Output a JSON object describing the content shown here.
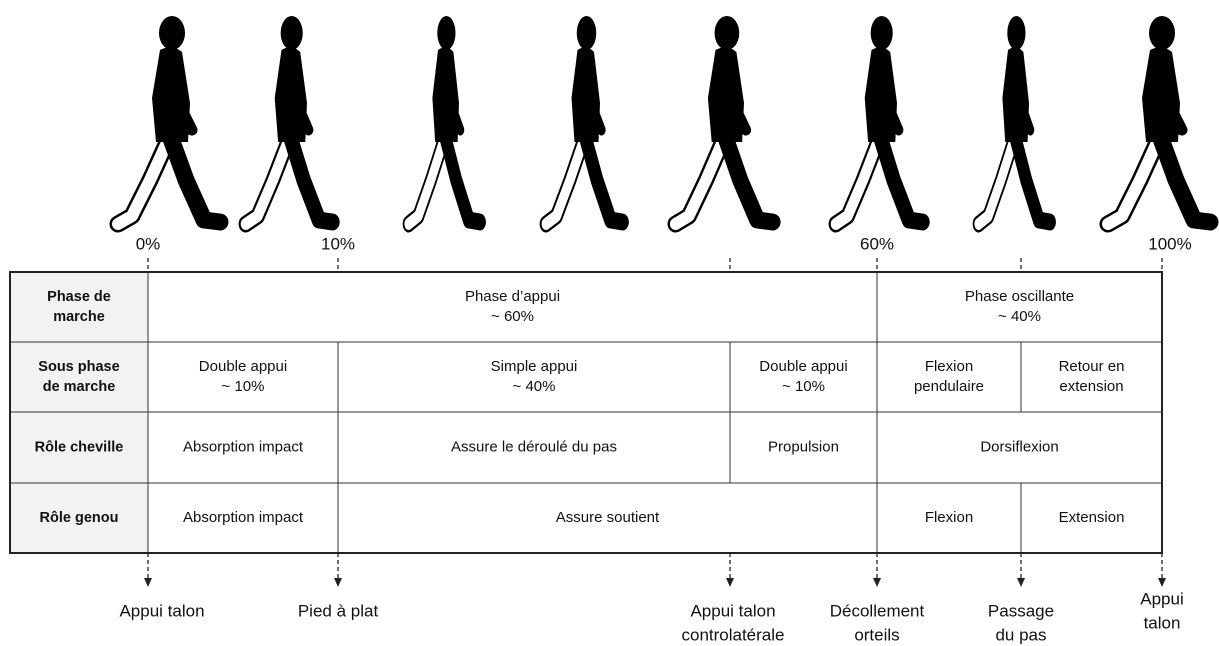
{
  "percent_labels": [
    "0%",
    "10%",
    "60%",
    "100%"
  ],
  "table": {
    "rows": [
      {
        "header": [
          "Phase de",
          "marche"
        ],
        "cells": [
          [
            "Phase d’appui",
            "~ 60%"
          ],
          [
            "Phase oscillante",
            "~ 40%"
          ]
        ]
      },
      {
        "header": [
          "Sous phase",
          "de marche"
        ],
        "cells": [
          [
            "Double appui",
            "~ 10%"
          ],
          [
            "Simple appui",
            "~ 40%"
          ],
          [
            "Double appui",
            "~ 10%"
          ],
          [
            "Flexion",
            "pendulaire"
          ],
          [
            "Retour en",
            "extension"
          ]
        ]
      },
      {
        "header": [
          "Rôle cheville"
        ],
        "cells": [
          [
            "Absorption impact"
          ],
          [
            "Assure le déroulé du pas"
          ],
          [
            "Propulsion"
          ],
          [
            "Dorsiflexion"
          ]
        ]
      },
      {
        "header": [
          "Rôle genou"
        ],
        "cells": [
          [
            "Absorption impact"
          ],
          [
            "Assure soutient"
          ],
          [
            "Flexion"
          ],
          [
            "Extension"
          ]
        ]
      }
    ]
  },
  "events": [
    [
      "Appui talon"
    ],
    [
      "Pied à plat"
    ],
    [
      "Appui talon",
      "controlatérale"
    ],
    [
      "Décollement",
      "orteils"
    ],
    [
      "Passage",
      "du pas"
    ],
    [
      "Appui",
      "talon"
    ]
  ]
}
